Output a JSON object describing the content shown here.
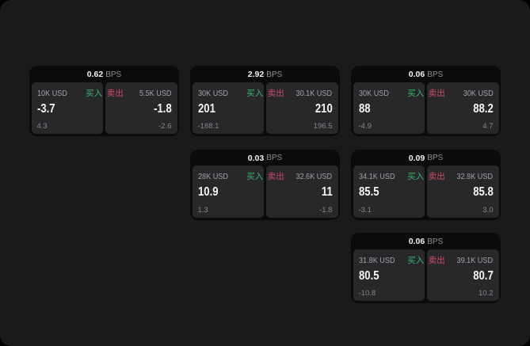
{
  "labels": {
    "buy": "买入",
    "sell": "卖出",
    "bps_unit": "BPS"
  },
  "colors": {
    "background": "#000000",
    "window": "#1a1a1c",
    "card": "#0b0b0c",
    "panel": "#28282b",
    "buy_accent": "#35b56d",
    "sell_accent": "#d2496b"
  },
  "cards": [
    {
      "bps": "0.62",
      "buy": {
        "amount": "10K USD",
        "price": "-3.7",
        "change": "4.3"
      },
      "sell": {
        "amount": "5.5K USD",
        "price": "-1.8",
        "change": "-2.6"
      }
    },
    {
      "bps": "2.92",
      "buy": {
        "amount": "30K USD",
        "price": "201",
        "change": "-188.1"
      },
      "sell": {
        "amount": "30.1K USD",
        "price": "210",
        "change": "196.5"
      }
    },
    {
      "bps": "0.06",
      "buy": {
        "amount": "30K USD",
        "price": "88",
        "change": "-4.9"
      },
      "sell": {
        "amount": "30K USD",
        "price": "88.2",
        "change": "4.7"
      }
    },
    {
      "bps": "0.03",
      "buy": {
        "amount": "28K USD",
        "price": "10.9",
        "change": "1.3"
      },
      "sell": {
        "amount": "32.6K USD",
        "price": "11",
        "change": "-1.8"
      }
    },
    {
      "bps": "0.09",
      "buy": {
        "amount": "34.1K USD",
        "price": "85.5",
        "change": "-3.1"
      },
      "sell": {
        "amount": "32.8K USD",
        "price": "85.8",
        "change": "3.0"
      }
    },
    {
      "bps": "0.06",
      "buy": {
        "amount": "31.8K USD",
        "price": "80.5",
        "change": "-10.8"
      },
      "sell": {
        "amount": "39.1K USD",
        "price": "80.7",
        "change": "10.2"
      }
    }
  ]
}
